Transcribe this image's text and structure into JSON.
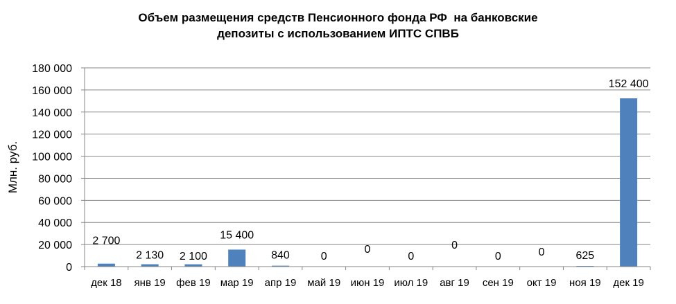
{
  "chart_data": {
    "type": "bar",
    "title_lines": [
      "Объем размещения средств Пенсионного фонда РФ  на банковские",
      "депозиты с использованием ИПТС СПВБ"
    ],
    "ylabel": "Млн. руб.",
    "xlabel": "",
    "ylim": [
      0,
      180000
    ],
    "yticks": [
      0,
      20000,
      40000,
      60000,
      80000,
      100000,
      120000,
      140000,
      160000,
      180000
    ],
    "ytick_labels": [
      "0",
      "20 000",
      "40 000",
      "60 000",
      "80 000",
      "100 000",
      "120 000",
      "140 000",
      "160 000",
      "180 000"
    ],
    "grid": true,
    "categories": [
      "дек 18",
      "янв 19",
      "фев 19",
      "мар 19",
      "апр 19",
      "май 19",
      "июн 19",
      "июл 19",
      "авг 19",
      "сен 19",
      "окт 19",
      "ноя 19",
      "дек 19"
    ],
    "values": [
      2700,
      2130,
      2100,
      15400,
      840,
      0,
      0,
      0,
      0,
      0,
      0,
      625,
      152400
    ],
    "data_labels": [
      "2 700",
      "2 130",
      "2 100",
      "15 400",
      "840",
      "0",
      "0",
      "0",
      "0",
      "0",
      "0",
      "625",
      "152 400"
    ],
    "bar_color": "#4F81BD",
    "grid_color": "#868686"
  }
}
